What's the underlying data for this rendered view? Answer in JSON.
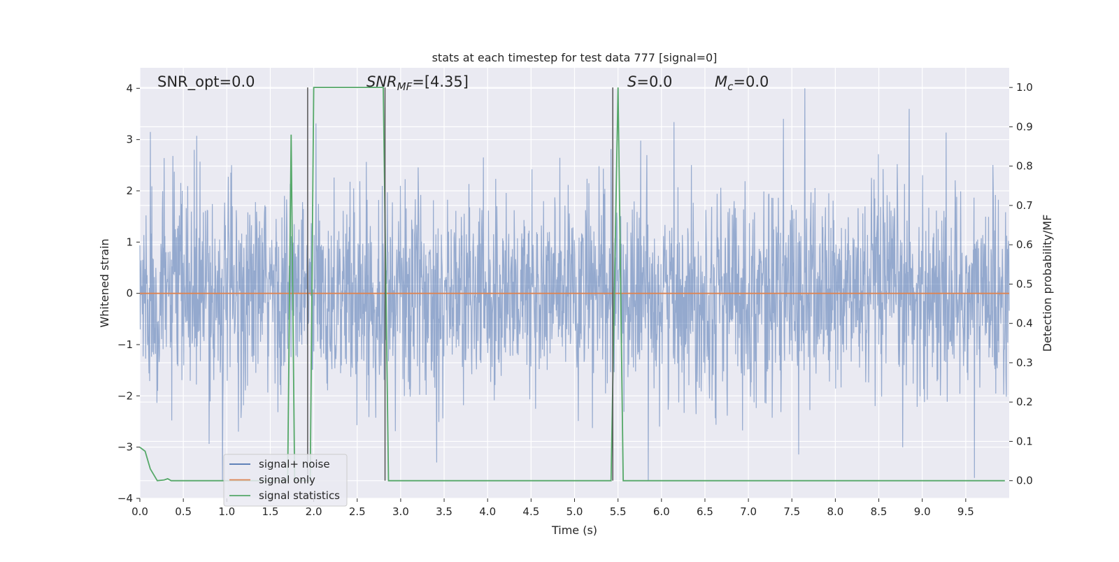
{
  "chart_data": {
    "type": "line",
    "title": "stats at each timestep for test data 777 [signal=0]",
    "xlabel": "Time (s)",
    "ylabel_left": "Whitened strain",
    "ylabel_right": "Detection probability/MF",
    "xlim": [
      0,
      10
    ],
    "ylim_left": [
      -4,
      4.4
    ],
    "ylim_right": [
      -0.045,
      1.05
    ],
    "x_ticks": [
      "0.0",
      "0.5",
      "1.0",
      "1.5",
      "2.0",
      "2.5",
      "3.0",
      "3.5",
      "4.0",
      "4.5",
      "5.0",
      "5.5",
      "6.0",
      "6.5",
      "7.0",
      "7.5",
      "8.0",
      "8.5",
      "9.0",
      "9.5"
    ],
    "y_ticks_left": [
      "−4",
      "−3",
      "−2",
      "−1",
      "0",
      "1",
      "2",
      "3",
      "4"
    ],
    "y_ticks_right": [
      "0.0",
      "0.1",
      "0.2",
      "0.3",
      "0.4",
      "0.5",
      "0.6",
      "0.7",
      "0.8",
      "0.9",
      "1.0"
    ],
    "grid": true,
    "background": "#eaeaf2",
    "annotations": {
      "snr_opt": "SNR_opt=0.0",
      "snr_mf_sym": "SNR",
      "snr_mf_sub": "MF",
      "snr_mf_val": "=[4.35]",
      "s_sym": "S",
      "s_val": "=0.0",
      "mc_sym": "M",
      "mc_sub": "c",
      "mc_val": "=0.0"
    },
    "legend": {
      "position": "lower-left",
      "entries": [
        {
          "label": "signal+ noise",
          "color": "#4c72b0"
        },
        {
          "label": "signal only",
          "color": "#dd8452"
        },
        {
          "label": "signal statistics",
          "color": "#55a868"
        }
      ]
    },
    "series": [
      {
        "name": "signal+ noise",
        "axis": "left",
        "color": "#4c72b0",
        "kind": "whitened-noise",
        "x_range": [
          0,
          10
        ],
        "envelope": {
          "typical_abs": 1.0,
          "max": 4.0,
          "min": -3.65
        },
        "notable_peaks": [
          {
            "x": 7.65,
            "y": 4.0
          },
          {
            "x": 8.85,
            "y": 3.6
          },
          {
            "x": 0.12,
            "y": 3.15
          },
          {
            "x": 0.95,
            "y": -3.65
          },
          {
            "x": 9.6,
            "y": -3.6
          }
        ]
      },
      {
        "name": "signal only",
        "axis": "left",
        "color": "#dd8452",
        "x": [
          0,
          10
        ],
        "y": [
          0,
          0
        ]
      },
      {
        "name": "signal statistics",
        "axis": "right",
        "color": "#55a868",
        "x": [
          0.0,
          0.06,
          0.12,
          0.2,
          0.28,
          0.32,
          0.36,
          0.4,
          1.7,
          1.74,
          1.78,
          1.84,
          1.9,
          1.96,
          2.0,
          2.8,
          2.86,
          5.42,
          5.5,
          5.56,
          9.95
        ],
        "y": [
          0.085,
          0.075,
          0.03,
          0.0,
          0.002,
          0.005,
          0.0,
          0.0,
          0.0,
          0.88,
          0.0,
          0.0,
          0.0,
          0.0,
          1.0,
          1.0,
          0.0,
          0.0,
          1.0,
          0.0,
          0.0
        ]
      },
      {
        "name": "mf-markers",
        "axis": "right",
        "color": "#555555",
        "kind": "vlines",
        "x": [
          1.93,
          2.82,
          5.44
        ]
      }
    ]
  }
}
